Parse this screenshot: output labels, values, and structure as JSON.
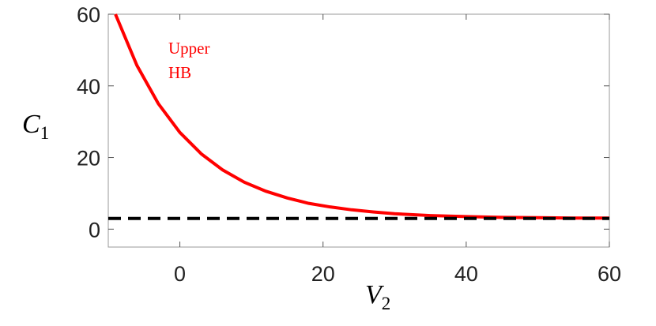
{
  "chart_data": {
    "type": "line",
    "x_label": "V",
    "x_label_sub": "2",
    "y_label": "C",
    "y_label_sub": "1",
    "annotation": [
      "Upper",
      "HB"
    ],
    "xlim": [
      -10,
      60
    ],
    "xticks": [
      0,
      20,
      40,
      60
    ],
    "ylim": [
      -5,
      60
    ],
    "yticks": [
      0,
      20,
      40,
      60
    ],
    "series": [
      {
        "color": "#ff0000",
        "dashed": false,
        "x": [
          -9,
          -6,
          -3,
          0,
          3,
          6,
          9,
          12,
          15,
          18,
          21,
          24,
          27,
          30,
          35,
          40,
          45,
          50,
          55,
          60
        ],
        "values": [
          60,
          45.7,
          35,
          27,
          21,
          16.5,
          13.1,
          10.6,
          8.7,
          7.2,
          6.2,
          5.4,
          4.8,
          4.3,
          3.8,
          3.5,
          3.3,
          3.2,
          3.1,
          3.1
        ]
      },
      {
        "color": "#000000",
        "dashed": true,
        "x": [
          -10,
          60
        ],
        "values": [
          3,
          3
        ]
      }
    ]
  }
}
